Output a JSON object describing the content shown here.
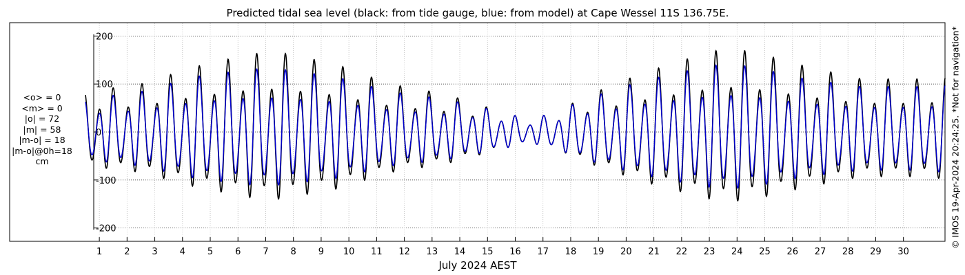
{
  "chart_data": {
    "type": "line",
    "title": "Predicted tidal sea level (black: from tide gauge, blue: from model) at Cape Wessel 11S 136.75E.",
    "xlabel": "July 2024 AEST",
    "ylabel": "",
    "xlim": [
      0,
      31
    ],
    "ylim": [
      -220,
      220
    ],
    "y_ticks": [
      -200,
      -100,
      0,
      100,
      200
    ],
    "x_ticks": [
      "1",
      "2",
      "3",
      "4",
      "5",
      "6",
      "7",
      "8",
      "9",
      "10",
      "11",
      "12",
      "13",
      "14",
      "15",
      "16",
      "17",
      "18",
      "19",
      "20",
      "21",
      "22",
      "23",
      "24",
      "25",
      "26",
      "27",
      "28",
      "29",
      "30"
    ],
    "grid": true,
    "units": "cm",
    "series": [
      {
        "name": "tide gauge",
        "color": "#000000",
        "envelope_day": [
          0,
          2,
          4,
          6,
          7,
          9,
          11,
          13,
          15,
          16,
          17,
          18,
          20,
          22,
          23,
          24,
          26,
          28,
          30,
          31
        ],
        "envelope_amp": [
          80,
          95,
          130,
          155,
          158,
          135,
          95,
          75,
          40,
          25,
          40,
          70,
          115,
          150,
          165,
          160,
          130,
          105,
          105,
          110
        ]
      },
      {
        "name": "model",
        "color": "#0000cc",
        "envelope_day": [
          0,
          2,
          4,
          6,
          7,
          9,
          11,
          13,
          15,
          16,
          17,
          18,
          20,
          22,
          23,
          24,
          26,
          28,
          30,
          31
        ],
        "envelope_amp": [
          65,
          80,
          110,
          125,
          125,
          110,
          80,
          65,
          40,
          25,
          40,
          65,
          100,
          125,
          135,
          130,
          105,
          90,
          90,
          95
        ]
      }
    ]
  },
  "stats": {
    "mean_obs": "<o> = 0",
    "mean_model": "<m> = 0",
    "abs_obs": "|o| = 72",
    "abs_model": "|m| = 58",
    "abs_diff": "|m-o| = 18",
    "abs_diff_0h": "|m-o|@0h=18",
    "unit": "cm"
  },
  "credit": "© IMOS 19-Apr-2024 20:24:25. *Not for navigation*"
}
